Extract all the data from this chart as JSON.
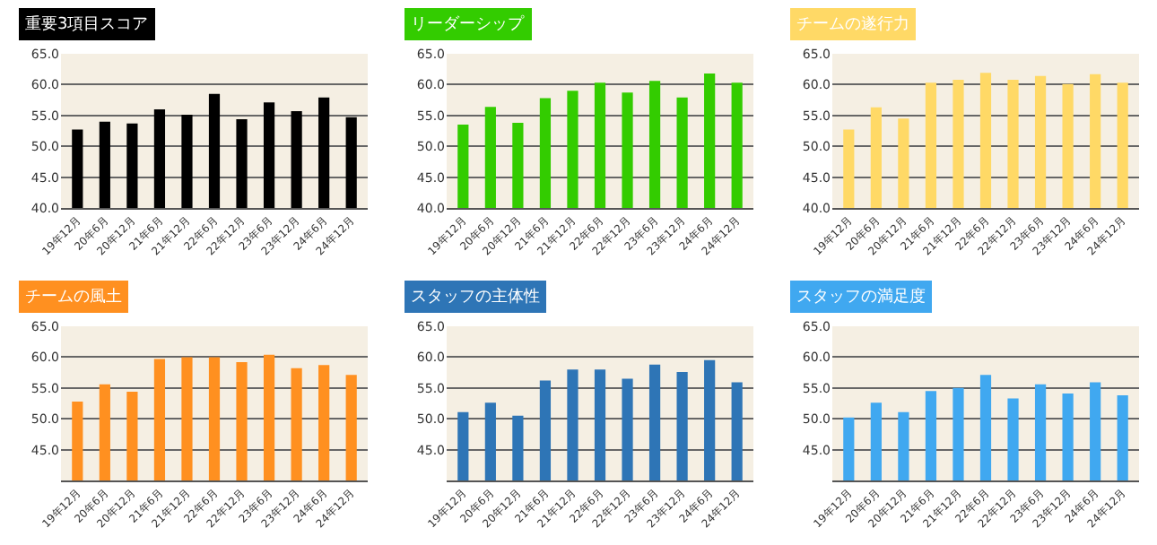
{
  "chart_data": [
    {
      "type": "bar",
      "title": "重要3項目スコア",
      "categories": [
        "19年12月",
        "20年6月",
        "20年12月",
        "21年6月",
        "21年12月",
        "22年6月",
        "22年12月",
        "23年6月",
        "23年12月",
        "24年6月",
        "24年12月"
      ],
      "values": [
        52.7,
        54.0,
        53.7,
        56.0,
        55.1,
        58.5,
        54.4,
        57.1,
        55.7,
        57.9,
        54.7
      ],
      "color": "#000000",
      "ylim": [
        40,
        65
      ],
      "yticks": [
        {
          "value": 40,
          "label": "40.0"
        },
        {
          "value": 45,
          "label": "45.0"
        },
        {
          "value": 50,
          "label": "50.0"
        },
        {
          "value": 55,
          "label": "55.0"
        },
        {
          "value": 60,
          "label": "60.0"
        },
        {
          "value": 65,
          "label": "65.0"
        }
      ],
      "grid": "y",
      "legend": false
    },
    {
      "type": "bar",
      "title": "リーダーシップ",
      "categories": [
        "19年12月",
        "20年6月",
        "20年12月",
        "21年6月",
        "21年12月",
        "22年6月",
        "22年12月",
        "23年6月",
        "23年12月",
        "24年6月",
        "24年12月"
      ],
      "values": [
        53.5,
        56.4,
        53.8,
        57.8,
        59.0,
        60.3,
        58.7,
        60.6,
        57.9,
        61.8,
        60.3
      ],
      "color": "#33cc00",
      "ylim": [
        40,
        65
      ],
      "yticks": [
        {
          "value": 40,
          "label": "40.0"
        },
        {
          "value": 45,
          "label": "45.0"
        },
        {
          "value": 50,
          "label": "50.0"
        },
        {
          "value": 55,
          "label": "55.0"
        },
        {
          "value": 60,
          "label": "60.0"
        },
        {
          "value": 65,
          "label": "65.0"
        }
      ],
      "grid": "y",
      "legend": false
    },
    {
      "type": "bar",
      "title": "チームの遂行力",
      "categories": [
        "19年12月",
        "20年6月",
        "20年12月",
        "21年6月",
        "21年12月",
        "22年6月",
        "22年12月",
        "23年6月",
        "23年12月",
        "24年6月",
        "24年12月"
      ],
      "values": [
        52.7,
        56.3,
        54.5,
        60.3,
        60.8,
        61.9,
        60.8,
        61.4,
        60.1,
        61.7,
        60.3
      ],
      "color": "#ffd966",
      "ylim": [
        40,
        65
      ],
      "yticks": [
        {
          "value": 40,
          "label": "40.0"
        },
        {
          "value": 45,
          "label": "45.0"
        },
        {
          "value": 50,
          "label": "50.0"
        },
        {
          "value": 55,
          "label": "55.0"
        },
        {
          "value": 60,
          "label": "60.0"
        },
        {
          "value": 65,
          "label": "65.0"
        }
      ],
      "grid": "y",
      "legend": false
    },
    {
      "type": "bar",
      "title": "チームの風土",
      "categories": [
        "19年12月",
        "20年6月",
        "20年12月",
        "21年6月",
        "21年12月",
        "22年6月",
        "22年12月",
        "23年6月",
        "23年12月",
        "24年6月",
        "24年12月"
      ],
      "values": [
        52.8,
        55.6,
        54.4,
        59.7,
        60.0,
        60.0,
        59.2,
        60.4,
        58.2,
        58.7,
        57.1
      ],
      "color": "#ff9020",
      "ylim": [
        40,
        65
      ],
      "yticks": [
        {
          "value": 45,
          "label": "45.0"
        },
        {
          "value": 50,
          "label": "50.0"
        },
        {
          "value": 55,
          "label": "55.0"
        },
        {
          "value": 60,
          "label": "60.0"
        },
        {
          "value": 65,
          "label": "65.0"
        }
      ],
      "grid": "y",
      "legend": false
    },
    {
      "type": "bar",
      "title": "スタッフの主体性",
      "categories": [
        "19年12月",
        "20年6月",
        "20年12月",
        "21年6月",
        "21年12月",
        "22年6月",
        "22年12月",
        "23年6月",
        "23年12月",
        "24年6月",
        "24年12月"
      ],
      "values": [
        51.1,
        52.6,
        50.5,
        56.2,
        58.0,
        58.0,
        56.5,
        58.8,
        57.6,
        59.5,
        55.9
      ],
      "color": "#2e75b6",
      "ylim": [
        40,
        65
      ],
      "yticks": [
        {
          "value": 45,
          "label": "45.0"
        },
        {
          "value": 50,
          "label": "50.0"
        },
        {
          "value": 55,
          "label": "55.0"
        },
        {
          "value": 60,
          "label": "60.0"
        },
        {
          "value": 65,
          "label": "65.0"
        }
      ],
      "grid": "y",
      "legend": false
    },
    {
      "type": "bar",
      "title": "スタッフの満足度",
      "categories": [
        "19年12月",
        "20年6月",
        "20年12月",
        "21年6月",
        "21年12月",
        "22年6月",
        "22年12月",
        "23年6月",
        "23年12月",
        "24年6月",
        "24年12月"
      ],
      "values": [
        50.2,
        52.6,
        51.1,
        54.5,
        55.0,
        57.1,
        53.3,
        55.6,
        54.1,
        55.9,
        53.8
      ],
      "color": "#40a8f0",
      "ylim": [
        40,
        65
      ],
      "yticks": [
        {
          "value": 45,
          "label": "45.0"
        },
        {
          "value": 50,
          "label": "50.0"
        },
        {
          "value": 55,
          "label": "55.0"
        },
        {
          "value": 60,
          "label": "60.0"
        },
        {
          "value": 65,
          "label": "65.0"
        }
      ],
      "grid": "y",
      "legend": false
    }
  ]
}
